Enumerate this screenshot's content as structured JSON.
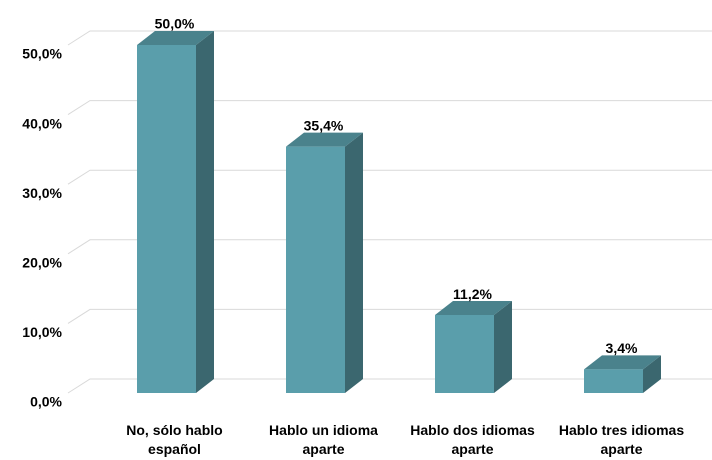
{
  "chart_data": {
    "type": "bar3d",
    "categories": [
      "No, sólo hablo español",
      "Hablo un idioma aparte",
      "Hablo dos idiomas aparte",
      "Hablo tres idiomas aparte"
    ],
    "values": [
      50.0,
      35.4,
      11.2,
      3.4
    ],
    "value_labels": [
      "50,0%",
      "35,4%",
      "11,2%",
      "3,4%"
    ],
    "color": "#5a9eab",
    "ylim": [
      0,
      50
    ],
    "yticks": [
      {
        "value": 0,
        "label": "0,0%"
      },
      {
        "value": 10,
        "label": "10,0%"
      },
      {
        "value": 20,
        "label": "20,0%"
      },
      {
        "value": 30,
        "label": "30,0%"
      },
      {
        "value": 40,
        "label": "40,0%"
      },
      {
        "value": 50,
        "label": "50,0%"
      }
    ],
    "grid": true
  }
}
